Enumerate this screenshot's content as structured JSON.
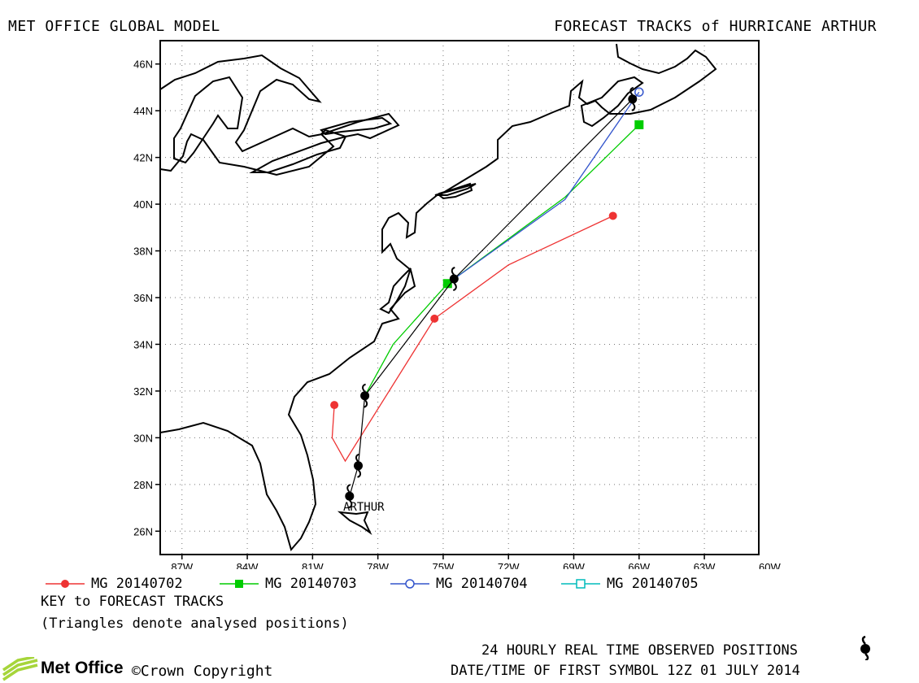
{
  "header": {
    "left_title": "MET OFFICE GLOBAL MODEL",
    "right_title": "FORECAST TRACKS of HURRICANE ARTHUR"
  },
  "map": {
    "lat_labels": [
      "46N",
      "44N",
      "42N",
      "40N",
      "38N",
      "36N",
      "34N",
      "32N",
      "30N",
      "28N",
      "26N"
    ],
    "lon_labels": [
      "87W",
      "84W",
      "81W",
      "78W",
      "75W",
      "72W",
      "69W",
      "66W",
      "63W",
      "60W"
    ],
    "storm_label": "ARTHUR",
    "observed_positions": [
      [
        -79.3,
        27.5
      ],
      [
        -78.9,
        28.8
      ],
      [
        -78.6,
        31.8
      ],
      [
        -74.5,
        36.8
      ],
      [
        -66.3,
        44.5
      ]
    ]
  },
  "chart_data": {
    "type": "line",
    "xlim": [
      -88,
      -60.5
    ],
    "ylim": [
      25,
      47
    ],
    "x_unit": "degrees longitude (W negative)",
    "y_unit": "degrees latitude",
    "series": [
      {
        "name": "MG 20140702",
        "color": "#ee3333",
        "marker": "circle-filled",
        "points": [
          [
            -80.0,
            31.4
          ],
          [
            -80.1,
            30.0
          ],
          [
            -79.5,
            29.0
          ],
          [
            -75.4,
            35.1
          ],
          [
            -72.0,
            37.4
          ],
          [
            -67.2,
            39.5
          ]
        ],
        "marked": [
          0,
          3,
          5
        ]
      },
      {
        "name": "MG 20140703",
        "color": "#00cc00",
        "marker": "square-filled",
        "points": [
          [
            -78.6,
            31.8
          ],
          [
            -77.3,
            34.0
          ],
          [
            -74.8,
            36.6
          ],
          [
            -69.4,
            40.3
          ],
          [
            -66.0,
            43.4
          ]
        ],
        "marked": [
          2,
          4
        ]
      },
      {
        "name": "MG 20140704",
        "color": "#3355cc",
        "marker": "circle-open",
        "points": [
          [
            -74.5,
            36.8
          ],
          [
            -69.4,
            40.2
          ],
          [
            -66.0,
            44.8
          ]
        ],
        "marked": [
          2
        ]
      },
      {
        "name": "MG 20140705",
        "color": "#00bbbb",
        "marker": "square-open",
        "points": [],
        "marked": []
      }
    ]
  },
  "legend": {
    "items": [
      {
        "label": "MG 20140702",
        "color": "#ee3333",
        "marker": "circle-filled"
      },
      {
        "label": "MG 20140703",
        "color": "#00cc00",
        "marker": "square-filled"
      },
      {
        "label": "MG 20140704",
        "color": "#3355cc",
        "marker": "circle-open"
      },
      {
        "label": "MG 20140705",
        "color": "#00bbbb",
        "marker": "square-open"
      }
    ],
    "key_title": "KEY to FORECAST TRACKS",
    "key_note": "(Triangles denote analysed positions)"
  },
  "footer": {
    "observed_note": "24 HOURLY REAL TIME OBSERVED POSITIONS",
    "first_symbol": "DATE/TIME OF FIRST SYMBOL 12Z 01 JULY 2014",
    "logo_text": "Met Office",
    "copyright": "©Crown Copyright"
  }
}
